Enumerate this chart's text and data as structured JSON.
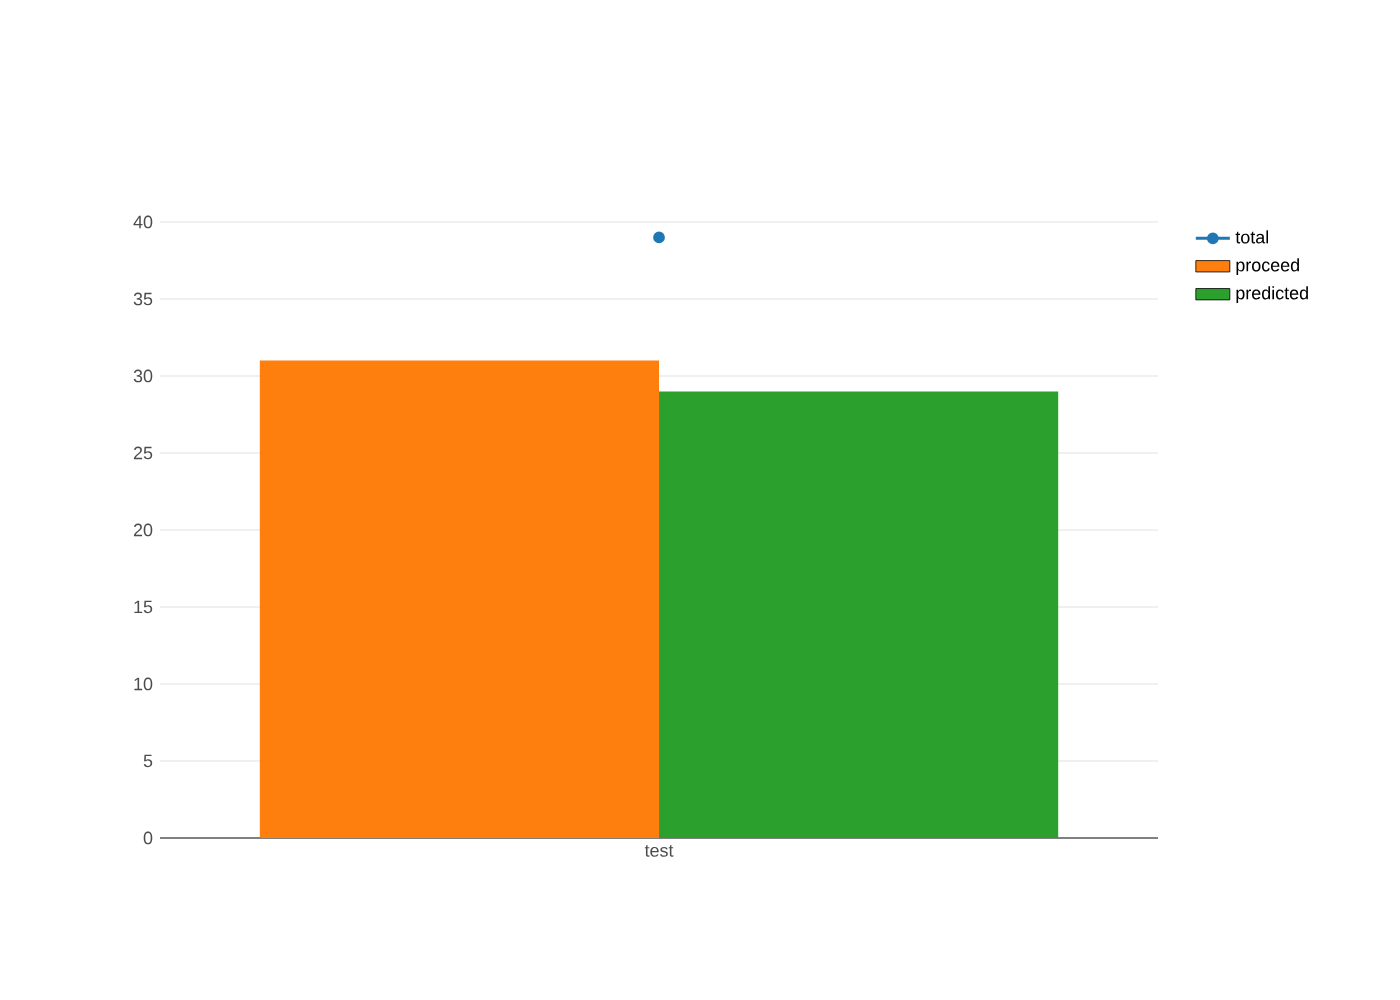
{
  "chart_data": {
    "type": "bar",
    "categories": [
      "test"
    ],
    "series": [
      {
        "name": "total",
        "type": "line",
        "color": "#1f77b4",
        "values": [
          39
        ]
      },
      {
        "name": "proceed",
        "color": "#ff7f0e",
        "values": [
          31
        ]
      },
      {
        "name": "predicted",
        "color": "#2ca02c",
        "values": [
          29
        ]
      }
    ],
    "marker": "circle",
    "ylim": [
      0,
      40
    ],
    "yticks": [
      0,
      5,
      10,
      15,
      20,
      25,
      30,
      35,
      40
    ],
    "grid": "y",
    "legend": "top right"
  }
}
